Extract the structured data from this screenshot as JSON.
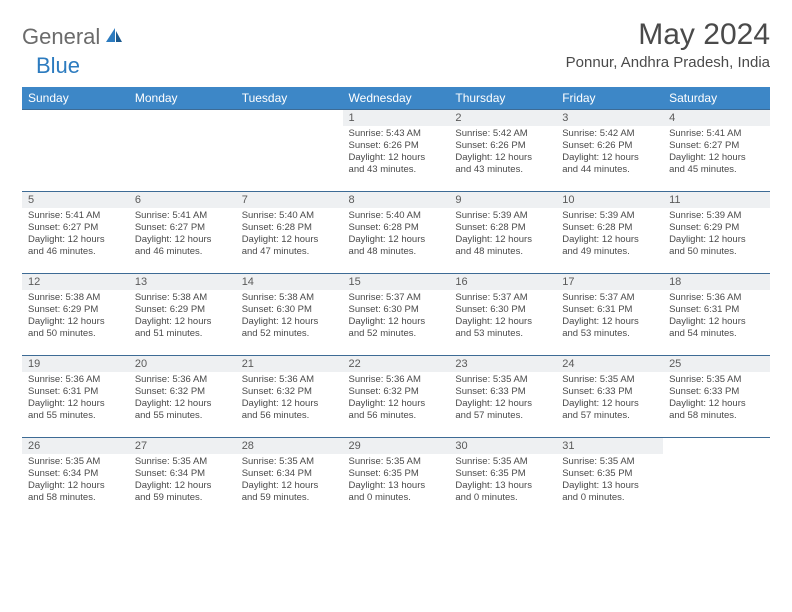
{
  "logo": {
    "text1": "General",
    "text2": "Blue"
  },
  "title": "May 2024",
  "location": "Ponnur, Andhra Pradesh, India",
  "colors": {
    "header_bg": "#3d87c7",
    "header_text": "#ffffff",
    "rule": "#3d6b95",
    "daynum_bg": "#eef0f2",
    "body_text": "#4a4a4a",
    "logo_gray": "#6b6b6b",
    "logo_blue": "#2c7bbf"
  },
  "dow": [
    "Sunday",
    "Monday",
    "Tuesday",
    "Wednesday",
    "Thursday",
    "Friday",
    "Saturday"
  ],
  "weeks": [
    [
      null,
      null,
      null,
      {
        "n": "1",
        "sr": "5:43 AM",
        "ss": "6:26 PM",
        "dl": "12 hours and 43 minutes."
      },
      {
        "n": "2",
        "sr": "5:42 AM",
        "ss": "6:26 PM",
        "dl": "12 hours and 43 minutes."
      },
      {
        "n": "3",
        "sr": "5:42 AM",
        "ss": "6:26 PM",
        "dl": "12 hours and 44 minutes."
      },
      {
        "n": "4",
        "sr": "5:41 AM",
        "ss": "6:27 PM",
        "dl": "12 hours and 45 minutes."
      }
    ],
    [
      {
        "n": "5",
        "sr": "5:41 AM",
        "ss": "6:27 PM",
        "dl": "12 hours and 46 minutes."
      },
      {
        "n": "6",
        "sr": "5:41 AM",
        "ss": "6:27 PM",
        "dl": "12 hours and 46 minutes."
      },
      {
        "n": "7",
        "sr": "5:40 AM",
        "ss": "6:28 PM",
        "dl": "12 hours and 47 minutes."
      },
      {
        "n": "8",
        "sr": "5:40 AM",
        "ss": "6:28 PM",
        "dl": "12 hours and 48 minutes."
      },
      {
        "n": "9",
        "sr": "5:39 AM",
        "ss": "6:28 PM",
        "dl": "12 hours and 48 minutes."
      },
      {
        "n": "10",
        "sr": "5:39 AM",
        "ss": "6:28 PM",
        "dl": "12 hours and 49 minutes."
      },
      {
        "n": "11",
        "sr": "5:39 AM",
        "ss": "6:29 PM",
        "dl": "12 hours and 50 minutes."
      }
    ],
    [
      {
        "n": "12",
        "sr": "5:38 AM",
        "ss": "6:29 PM",
        "dl": "12 hours and 50 minutes."
      },
      {
        "n": "13",
        "sr": "5:38 AM",
        "ss": "6:29 PM",
        "dl": "12 hours and 51 minutes."
      },
      {
        "n": "14",
        "sr": "5:38 AM",
        "ss": "6:30 PM",
        "dl": "12 hours and 52 minutes."
      },
      {
        "n": "15",
        "sr": "5:37 AM",
        "ss": "6:30 PM",
        "dl": "12 hours and 52 minutes."
      },
      {
        "n": "16",
        "sr": "5:37 AM",
        "ss": "6:30 PM",
        "dl": "12 hours and 53 minutes."
      },
      {
        "n": "17",
        "sr": "5:37 AM",
        "ss": "6:31 PM",
        "dl": "12 hours and 53 minutes."
      },
      {
        "n": "18",
        "sr": "5:36 AM",
        "ss": "6:31 PM",
        "dl": "12 hours and 54 minutes."
      }
    ],
    [
      {
        "n": "19",
        "sr": "5:36 AM",
        "ss": "6:31 PM",
        "dl": "12 hours and 55 minutes."
      },
      {
        "n": "20",
        "sr": "5:36 AM",
        "ss": "6:32 PM",
        "dl": "12 hours and 55 minutes."
      },
      {
        "n": "21",
        "sr": "5:36 AM",
        "ss": "6:32 PM",
        "dl": "12 hours and 56 minutes."
      },
      {
        "n": "22",
        "sr": "5:36 AM",
        "ss": "6:32 PM",
        "dl": "12 hours and 56 minutes."
      },
      {
        "n": "23",
        "sr": "5:35 AM",
        "ss": "6:33 PM",
        "dl": "12 hours and 57 minutes."
      },
      {
        "n": "24",
        "sr": "5:35 AM",
        "ss": "6:33 PM",
        "dl": "12 hours and 57 minutes."
      },
      {
        "n": "25",
        "sr": "5:35 AM",
        "ss": "6:33 PM",
        "dl": "12 hours and 58 minutes."
      }
    ],
    [
      {
        "n": "26",
        "sr": "5:35 AM",
        "ss": "6:34 PM",
        "dl": "12 hours and 58 minutes."
      },
      {
        "n": "27",
        "sr": "5:35 AM",
        "ss": "6:34 PM",
        "dl": "12 hours and 59 minutes."
      },
      {
        "n": "28",
        "sr": "5:35 AM",
        "ss": "6:34 PM",
        "dl": "12 hours and 59 minutes."
      },
      {
        "n": "29",
        "sr": "5:35 AM",
        "ss": "6:35 PM",
        "dl": "13 hours and 0 minutes."
      },
      {
        "n": "30",
        "sr": "5:35 AM",
        "ss": "6:35 PM",
        "dl": "13 hours and 0 minutes."
      },
      {
        "n": "31",
        "sr": "5:35 AM",
        "ss": "6:35 PM",
        "dl": "13 hours and 0 minutes."
      },
      null
    ]
  ],
  "labels": {
    "sunrise": "Sunrise:",
    "sunset": "Sunset:",
    "daylight": "Daylight:"
  }
}
